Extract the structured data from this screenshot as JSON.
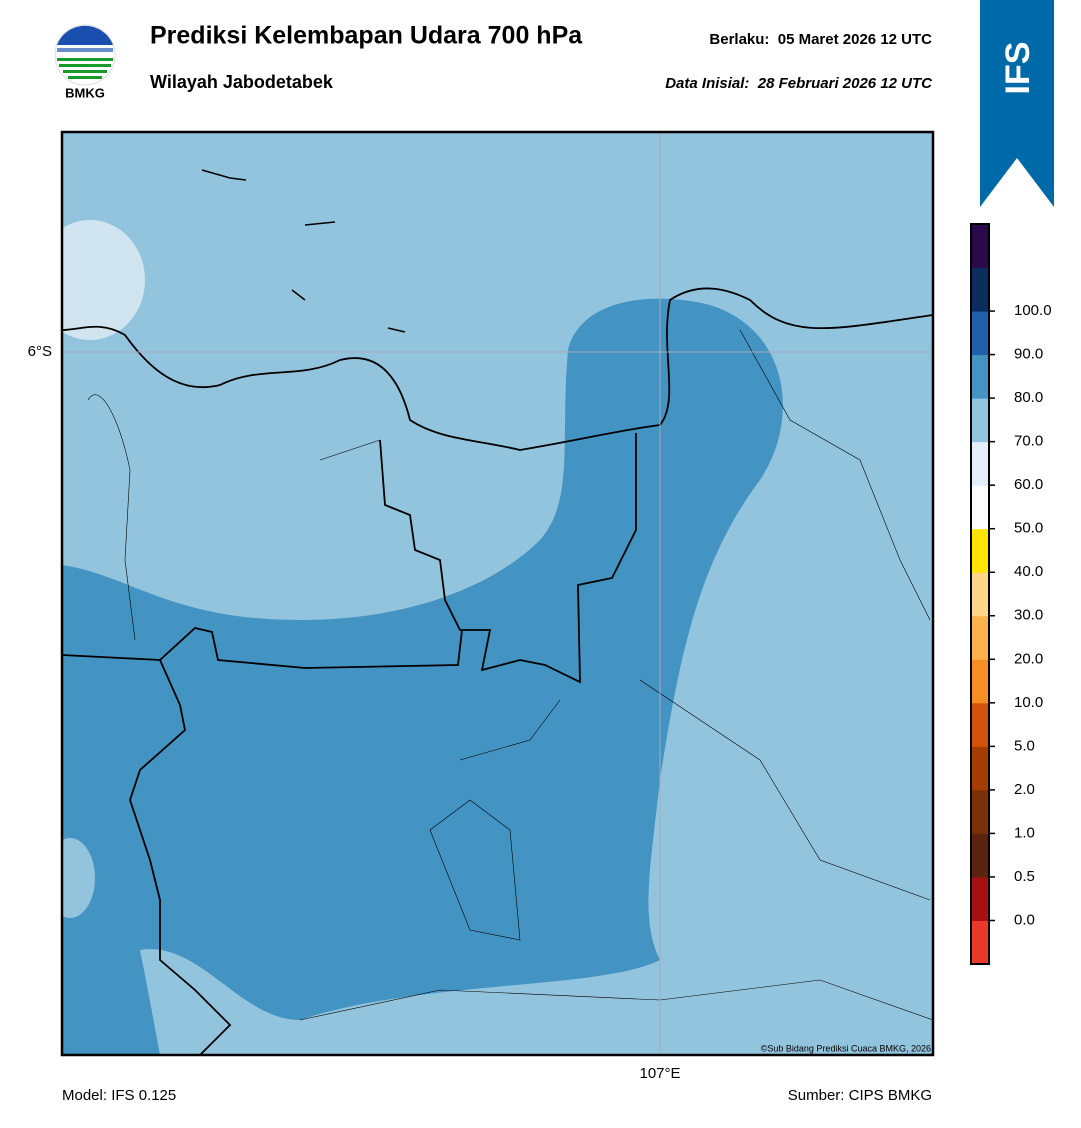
{
  "header": {
    "logo_text": "BMKG",
    "title": "Prediksi Kelembapan Udara 700 hPa",
    "subtitle": "Wilayah Jabodetabek",
    "valid": "Berlaku:  05 Maret 2026 12 UTC",
    "init": "Data Inisial:  28 Februari 2026 12 UTC"
  },
  "badge": "IFS",
  "map": {
    "lat_label": "6°S",
    "lon_label": "107°E",
    "credit": "©Sub Bidang Prediksi Cuaca BMKG, 2026"
  },
  "colorbar": {
    "labels": [
      "0.0",
      "0.5",
      "1.0",
      "2.0",
      "5.0",
      "10.0",
      "20.0",
      "30.0",
      "40.0",
      "50.0",
      "60.0",
      "70.0",
      "80.0",
      "90.0",
      "100.0"
    ],
    "colors": [
      "#e8392b",
      "#a80f15",
      "#5a2410",
      "#7c3008",
      "#a43c04",
      "#d35408",
      "#f58f24",
      "#fbb24c",
      "#fdd689",
      "#ffe400",
      "#ffffff",
      "#e3eef8",
      "#93c4de",
      "#4393c3",
      "#2060aa",
      "#0a2d5e",
      "#2a0a4a"
    ]
  },
  "footer": {
    "model": "Model: IFS 0.125",
    "source": "Sumber: CIPS BMKG"
  }
}
